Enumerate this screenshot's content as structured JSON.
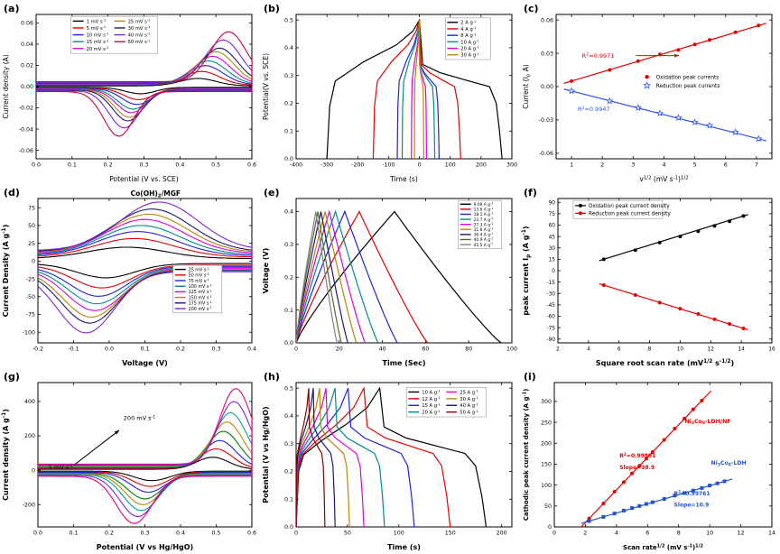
{
  "figure": {
    "background": "#ffffff"
  },
  "chart_data": [
    {
      "id": "a",
      "panel_label": "(a)",
      "type": "cv",
      "xlabel": "Potential (V vs. SCE)",
      "ylabel": "Current density (A)",
      "axis_fs": 7.5,
      "xlim": [
        0,
        0.6
      ],
      "ylim": [
        -0.068,
        0.068
      ],
      "xticks": [
        "0.0",
        "0.1",
        "0.2",
        "0.3",
        "0.4",
        "0.5",
        "0.6"
      ],
      "yticks": [
        "-0.06",
        "-0.04",
        "-0.02",
        "0.00",
        "0.02",
        "0.04",
        "0.06"
      ],
      "cv_style": {
        "wa": 0.05,
        "wc": 0.042,
        "offset": 0.1
      },
      "legend": {
        "fx": 0.17,
        "fy": 0.02,
        "cols": 2,
        "cw": 46,
        "rh": 7.6,
        "fs": 5.2,
        "box": true,
        "colmajor": true
      },
      "series": [
        {
          "label": "1 mV s^{-1}",
          "color": "#000000",
          "ax": 0.45,
          "ai": 0.007,
          "cx": 0.29,
          "ci": -0.006
        },
        {
          "label": "5 mV s^{-1}",
          "color": "#e60000",
          "ax": 0.46,
          "ai": 0.013,
          "cx": 0.285,
          "ci": -0.011
        },
        {
          "label": "10 mV s^{-1}",
          "color": "#2222dd",
          "ax": 0.47,
          "ai": 0.018,
          "cx": 0.28,
          "ci": -0.015
        },
        {
          "label": "15 mV s^{-1}",
          "color": "#008b8b",
          "ax": 0.48,
          "ai": 0.022,
          "cx": 0.27,
          "ci": -0.019
        },
        {
          "label": "20 mV s^{-1}",
          "color": "#dd00dd",
          "ax": 0.49,
          "ai": 0.026,
          "cx": 0.265,
          "ci": -0.022
        },
        {
          "label": "25 mV s^{-1}",
          "color": "#b8860b",
          "ax": 0.5,
          "ai": 0.03,
          "cx": 0.26,
          "ci": -0.026
        },
        {
          "label": "30 mV s^{-1}",
          "color": "#191970",
          "ax": 0.51,
          "ai": 0.033,
          "cx": 0.255,
          "ci": -0.029
        },
        {
          "label": "40 mV s^{-1}",
          "color": "#7d26cd",
          "ax": 0.52,
          "ai": 0.04,
          "cx": 0.245,
          "ci": -0.035
        },
        {
          "label": "50 mV s^{-1}",
          "color": "#cc0033",
          "ax": 0.535,
          "ai": 0.047,
          "cx": 0.23,
          "ci": -0.042
        }
      ]
    },
    {
      "id": "b",
      "panel_label": "(b)",
      "type": "gcd",
      "gcd_shape": "mirror",
      "vmax": 0.5,
      "xlabel": "Time (s)",
      "ylabel": "Potential(V vs. SCE)",
      "axis_fs": 7.5,
      "xlim": [
        -400,
        300
      ],
      "ylim": [
        0,
        0.52
      ],
      "xticks": [
        "-400",
        "-300",
        "-200",
        "-100",
        "0",
        "100",
        "200",
        "300"
      ],
      "yticks": [
        "0.0",
        "0.1",
        "0.2",
        "0.3",
        "0.4",
        "0.5"
      ],
      "legend": {
        "fx": 0.7,
        "fy": 0.03,
        "cols": 1,
        "cw": 46,
        "rh": 7.2,
        "fs": 5.2,
        "box": true
      },
      "series": [
        {
          "label": "2 A g^{-1}",
          "color": "#000000",
          "tc": 300,
          "td": 268
        },
        {
          "label": "4 A g^{-1}",
          "color": "#e60000",
          "tc": 150,
          "td": 134
        },
        {
          "label": "8 A g^{-1}",
          "color": "#2222dd",
          "tc": 72,
          "td": 64
        },
        {
          "label": "10 A g^{-1}",
          "color": "#008b8b",
          "tc": 56,
          "td": 50
        },
        {
          "label": "20 A g^{-1}",
          "color": "#dd00dd",
          "tc": 26,
          "td": 23
        },
        {
          "label": "30 A g^{-1}",
          "color": "#b8860b",
          "tc": 16,
          "td": 14
        }
      ]
    },
    {
      "id": "c",
      "panel_label": "(c)",
      "type": "line",
      "xlabel": "v^{1/2} (mV s^{-1})^{1/2}",
      "ylabel": "Current (I_{p} A)",
      "axis_fs": 7.5,
      "xlim": [
        0.5,
        7.5
      ],
      "ylim": [
        -0.065,
        0.065
      ],
      "xticks": [
        "1",
        "2",
        "3",
        "4",
        "5",
        "6",
        "7"
      ],
      "yticks": [
        "-0.06",
        "-0.03",
        "0.00",
        "0.03",
        "0.06"
      ],
      "legend": {
        "fx": 0.4,
        "fy": 0.4,
        "cols": 1,
        "cw": 80,
        "rh": 9.5,
        "fs": 5.8,
        "sample": "marker"
      },
      "series": [
        {
          "label": "Oxidation  peak currents",
          "color": "#e60000",
          "marker": "circle",
          "ext": 0.25,
          "x": [
            1,
            2.24,
            3.16,
            3.87,
            4.47,
            5,
            5.48,
            6.32,
            7.07
          ],
          "y": [
            0.005,
            0.015,
            0.023,
            0.029,
            0.033,
            0.038,
            0.042,
            0.049,
            0.055
          ]
        },
        {
          "label": "Reduction  peak currents",
          "color": "#3355ee",
          "marker": "star",
          "ext": 0.25,
          "x": [
            1,
            2.24,
            3.16,
            3.87,
            4.47,
            5,
            5.48,
            6.32,
            7.07
          ],
          "y": [
            -0.004,
            -0.013,
            -0.019,
            -0.024,
            -0.028,
            -0.032,
            -0.035,
            -0.041,
            -0.047
          ]
        }
      ],
      "annotations": [
        {
          "text": "R^{2}=0.9971",
          "color": "#e60000",
          "fx": 0.12,
          "fy": 0.3,
          "fs": 6.5
        },
        {
          "text": "R^{2}=0.9947",
          "color": "#3355ee",
          "fx": 0.1,
          "fy": 0.67,
          "fs": 6.5
        }
      ],
      "arrows": [
        {
          "fx1": 0.37,
          "fy1": 0.285,
          "fx2": 0.57,
          "fy2": 0.285,
          "color": "#e60000"
        }
      ]
    },
    {
      "id": "d",
      "panel_label": "(d)",
      "type": "cv",
      "title": "Co(OH)_{2}/MGF",
      "xlabel": "Voltage (V)",
      "ylabel": "Current Density (A g^{-1})",
      "bold_axes": true,
      "ml": 42,
      "xlim": [
        -0.2,
        0.4
      ],
      "ylim": [
        -115,
        88
      ],
      "xticks": [
        "-0.2",
        "-0.1",
        "0.0",
        "0.1",
        "0.2",
        "0.3",
        "0.4"
      ],
      "yticks": [
        "-100",
        "-75",
        "-50",
        "-25",
        "0",
        "25",
        "50",
        "75"
      ],
      "cv_style": {
        "wa": 0.11,
        "wc": 0.08,
        "offset": 0.22
      },
      "legend": {
        "fx": 0.64,
        "fy": 0.47,
        "cols": 1,
        "cw": 50,
        "rh": 6.2,
        "fs": 4.8,
        "box": true
      },
      "series": [
        {
          "label": "25 mV s^{-1}",
          "color": "#000000",
          "ax": 0.05,
          "ai": 16,
          "cx": -0.01,
          "ci": -20
        },
        {
          "label": "50 mV s^{-1}",
          "color": "#e60000",
          "ax": 0.07,
          "ai": 26,
          "cx": -0.02,
          "ci": -32
        },
        {
          "label": "75 mV s^{-1}",
          "color": "#2222dd",
          "ax": 0.08,
          "ai": 34,
          "cx": -0.03,
          "ci": -42
        },
        {
          "label": "100 mV s^{-1}",
          "color": "#008b8b",
          "ax": 0.09,
          "ai": 41,
          "cx": -0.035,
          "ci": -51
        },
        {
          "label": "125 mV s^{-1}",
          "color": "#dd00dd",
          "ax": 0.1,
          "ai": 48,
          "cx": -0.04,
          "ci": -59
        },
        {
          "label": "150 mV s^{-1}",
          "color": "#b8860b",
          "ax": 0.11,
          "ai": 54,
          "cx": -0.05,
          "ci": -67
        },
        {
          "label": "175 mV s^{-1}",
          "color": "#191970",
          "ax": 0.12,
          "ai": 60,
          "cx": -0.055,
          "ci": -74
        },
        {
          "label": "200 mV s^{-1}",
          "color": "#7d26cd",
          "ax": 0.14,
          "ai": 68,
          "cx": -0.065,
          "ci": -86
        }
      ]
    },
    {
      "id": "e",
      "panel_label": "(e)",
      "type": "gcd",
      "gcd_shape": "triangle",
      "vmax": 0.4,
      "peak_frac": 0.48,
      "xlabel": "Time (Sec)",
      "ylabel": "Voltage (V)",
      "bold_axes": true,
      "xlim": [
        0,
        100
      ],
      "ylim": [
        0,
        0.44
      ],
      "xticks": [
        "0",
        "20",
        "40",
        "60",
        "80",
        "100"
      ],
      "yticks": [
        "0.0",
        "0.1",
        "0.2",
        "0.3",
        "0.4"
      ],
      "legend": {
        "fx": 0.76,
        "fy": 0.02,
        "cols": 1,
        "cw": 44,
        "rh": 5.6,
        "fs": 4.4,
        "box": true
      },
      "series": [
        {
          "label": "9.09 A g^{-1}",
          "color": "#000000",
          "t": 95
        },
        {
          "label": "13.6 A g^{-1}",
          "color": "#e60000",
          "t": 61
        },
        {
          "label": "18.1 A g^{-1}",
          "color": "#2222dd",
          "t": 47
        },
        {
          "label": "22.7 A g^{-1}",
          "color": "#008b8b",
          "t": 38
        },
        {
          "label": "27.3 A g^{-1}",
          "color": "#dd00dd",
          "t": 32
        },
        {
          "label": "31.8 A g^{-1}",
          "color": "#b8860b",
          "t": 28
        },
        {
          "label": "36.4 A g^{-1}",
          "color": "#191970",
          "t": 24
        },
        {
          "label": "40.9 A g^{-1}",
          "color": "#556b2f",
          "t": 21
        },
        {
          "label": "45.5 A g^{-1}",
          "color": "#808080",
          "t": 19
        }
      ]
    },
    {
      "id": "f",
      "panel_label": "(f)",
      "type": "line",
      "xlabel": "Square root scan rate (mV^{1/2} s^{-1/2})",
      "ylabel": "peak current I_{p} (A g^{-1})",
      "bold_axes": true,
      "axis_fs": 8,
      "ml": 42,
      "tick_fs": 5.8,
      "xlim": [
        2,
        16
      ],
      "ylim": [
        -95,
        95
      ],
      "xticks": [
        "2",
        "4",
        "6",
        "8",
        "10",
        "12",
        "14",
        "16"
      ],
      "yticks": [
        "-90",
        "-75",
        "-60",
        "-45",
        "-30",
        "-15",
        "0",
        "15",
        "30",
        "45",
        "60",
        "75",
        "90"
      ],
      "legend": {
        "fx": 0.08,
        "fy": 0.02,
        "cols": 1,
        "cw": 95,
        "rh": 8.5,
        "fs": 5.8,
        "sample": "both",
        "box": true
      },
      "series": [
        {
          "label": "Oxidation peak current density",
          "color": "#000000",
          "marker": "circle",
          "ext": 0.3,
          "x": [
            5,
            7.07,
            8.66,
            10,
            11.18,
            12.25,
            13.23,
            14.14
          ],
          "y": [
            15,
            27,
            37,
            45,
            52,
            59,
            65,
            72
          ]
        },
        {
          "label": "Reduction peak current density",
          "color": "#e60000",
          "marker": "circle",
          "ext": 0.3,
          "x": [
            5,
            7.07,
            8.66,
            10,
            11.18,
            12.25,
            13.23,
            14.14
          ],
          "y": [
            -19,
            -32,
            -42,
            -50,
            -57,
            -64,
            -70,
            -76
          ]
        }
      ]
    },
    {
      "id": "g",
      "panel_label": "(g)",
      "type": "cv",
      "xlabel": "Potential (V vs Hg/HgO)",
      "ylabel": "Current density (A g^{-1})",
      "bold_axes": true,
      "ml": 42,
      "xlim": [
        0,
        0.6
      ],
      "ylim": [
        -330,
        510
      ],
      "xticks": [
        "0.0",
        "0.1",
        "0.2",
        "0.3",
        "0.4",
        "0.5",
        "0.6"
      ],
      "yticks": [
        "-200",
        "0",
        "200",
        "400"
      ],
      "cv_style": {
        "wa": 0.045,
        "wc": 0.05,
        "offset": 0.08
      },
      "series": [
        {
          "color": "#000000",
          "ax": 0.49,
          "ai": 70,
          "cx": 0.32,
          "ci": -55
        },
        {
          "color": "#e60000",
          "ax": 0.5,
          "ai": 115,
          "cx": 0.315,
          "ci": -85
        },
        {
          "color": "#2222dd",
          "ax": 0.51,
          "ai": 160,
          "cx": 0.31,
          "ci": -115
        },
        {
          "color": "#008000",
          "ax": 0.52,
          "ai": 210,
          "cx": 0.3,
          "ci": -150
        },
        {
          "color": "#b8860b",
          "ax": 0.53,
          "ai": 260,
          "cx": 0.295,
          "ci": -180
        },
        {
          "color": "#00a0a0",
          "ax": 0.54,
          "ai": 310,
          "cx": 0.29,
          "ci": -210
        },
        {
          "color": "#7d26cd",
          "ax": 0.55,
          "ai": 370,
          "cx": 0.28,
          "ci": -240
        },
        {
          "color": "#e6007e",
          "ax": 0.555,
          "ai": 440,
          "cx": 0.27,
          "ci": -275
        }
      ],
      "annotations": [
        {
          "text": "5 mV s^{-1}",
          "color": "#000000",
          "fx": 0.05,
          "fy": 0.6,
          "fs": 6.5
        },
        {
          "text": "200 mV s^{-1}",
          "color": "#000000",
          "fx": 0.4,
          "fy": 0.26,
          "fs": 6.5
        }
      ],
      "arrows": [
        {
          "fx1": 0.17,
          "fy1": 0.57,
          "fx2": 0.38,
          "fy2": 0.33,
          "color": "#000000"
        }
      ]
    },
    {
      "id": "h",
      "panel_label": "(h)",
      "type": "gcd",
      "gcd_shape": "plateau",
      "vmax": 0.5,
      "peak_frac": 0.44,
      "xlabel": "Time (s)",
      "ylabel": "Potential (V vs Hg/HgO)",
      "bold_axes": true,
      "xlim": [
        0,
        210
      ],
      "ylim": [
        0,
        0.52
      ],
      "xticks": [
        "0",
        "50",
        "100",
        "150",
        "200"
      ],
      "yticks": [
        "0.0",
        "0.1",
        "0.2",
        "0.3",
        "0.4",
        "0.5"
      ],
      "legend": {
        "fx": 0.52,
        "fy": 0.04,
        "cols": 2,
        "cw": 42,
        "rh": 7.4,
        "fs": 5.2,
        "box": true,
        "colmajor": true
      },
      "series": [
        {
          "label": "10 A g^{-1}",
          "color": "#000000",
          "t": 185
        },
        {
          "label": "12 A g^{-1}",
          "color": "#e60000",
          "t": 150
        },
        {
          "label": "15 A g^{-1}",
          "color": "#2222dd",
          "t": 115
        },
        {
          "label": "20 A g^{-1}",
          "color": "#008b8b",
          "t": 86
        },
        {
          "label": "25 A g^{-1}",
          "color": "#dd00dd",
          "t": 66
        },
        {
          "label": "30 A g^{-1}",
          "color": "#b8860b",
          "t": 52
        },
        {
          "label": "40 A g^{-1}",
          "color": "#191970",
          "t": 38
        },
        {
          "label": "50 A g^{-1}",
          "color": "#8b0000",
          "t": 28
        }
      ]
    },
    {
      "id": "i",
      "panel_label": "(i)",
      "type": "line",
      "xlabel": "Scan rate^{1/2} (mV s^{-1})^{1/2}",
      "ylabel": "Cathodic peak current density (A g^{-1})",
      "bold_axes": true,
      "axis_fs": 7,
      "ml": 38,
      "xlim": [
        0,
        14
      ],
      "ylim": [
        0,
        345
      ],
      "xticks": [
        "0",
        "2",
        "4",
        "6",
        "8",
        "10",
        "12",
        "14"
      ],
      "yticks": [
        "0",
        "50",
        "100",
        "150",
        "200",
        "250",
        "300"
      ],
      "series": [
        {
          "label": "Ni_{3}Co_{8}-LDH/NF",
          "color": "#e60000",
          "marker": "circle",
          "ext": 0.6,
          "x": [
            2.24,
            3.16,
            3.87,
            4.47,
            5,
            5.48,
            5.92,
            6.32,
            7.07,
            7.75,
            8.37,
            8.94,
            9.49
          ],
          "y": [
            20,
            56,
            84,
            107,
            128,
            146,
            163,
            179,
            208,
            235,
            259,
            281,
            302
          ]
        },
        {
          "label": "Ni_{3}Co_{8}-LDH",
          "color": "#2255cc",
          "marker": "square",
          "ext": 0.5,
          "x": [
            2.24,
            3.16,
            3.87,
            4.47,
            5,
            5.48,
            5.92,
            6.32,
            7.07,
            7.75,
            8.37,
            8.94,
            9.49,
            10,
            10.49,
            10.95
          ],
          "y": [
            14,
            24,
            32,
            39,
            45,
            50,
            55,
            59,
            67,
            75,
            81,
            87,
            93,
            99,
            104,
            109
          ]
        }
      ],
      "annotations": [
        {
          "text": "Ni_{3}Co_{8}-LDH/NF",
          "color": "#e60000",
          "fx": 0.6,
          "fy": 0.28,
          "fs": 6.2,
          "bold": true
        },
        {
          "text": "R^{2}=0.99801",
          "color": "#e60000",
          "fx": 0.3,
          "fy": 0.52,
          "fs": 6,
          "bold": true
        },
        {
          "text": "Slope=38.9",
          "color": "#e60000",
          "fx": 0.3,
          "fy": 0.6,
          "fs": 6,
          "bold": true
        },
        {
          "text": "Ni_{3}Co_{8}-LDH",
          "color": "#2255cc",
          "fx": 0.72,
          "fy": 0.57,
          "fs": 6.2,
          "bold": true
        },
        {
          "text": "R^{2}=0.99761",
          "color": "#2255cc",
          "fx": 0.55,
          "fy": 0.78,
          "fs": 6,
          "bold": true
        },
        {
          "text": "Slope=10.9",
          "color": "#2255cc",
          "fx": 0.55,
          "fy": 0.86,
          "fs": 6,
          "bold": true
        }
      ]
    }
  ]
}
